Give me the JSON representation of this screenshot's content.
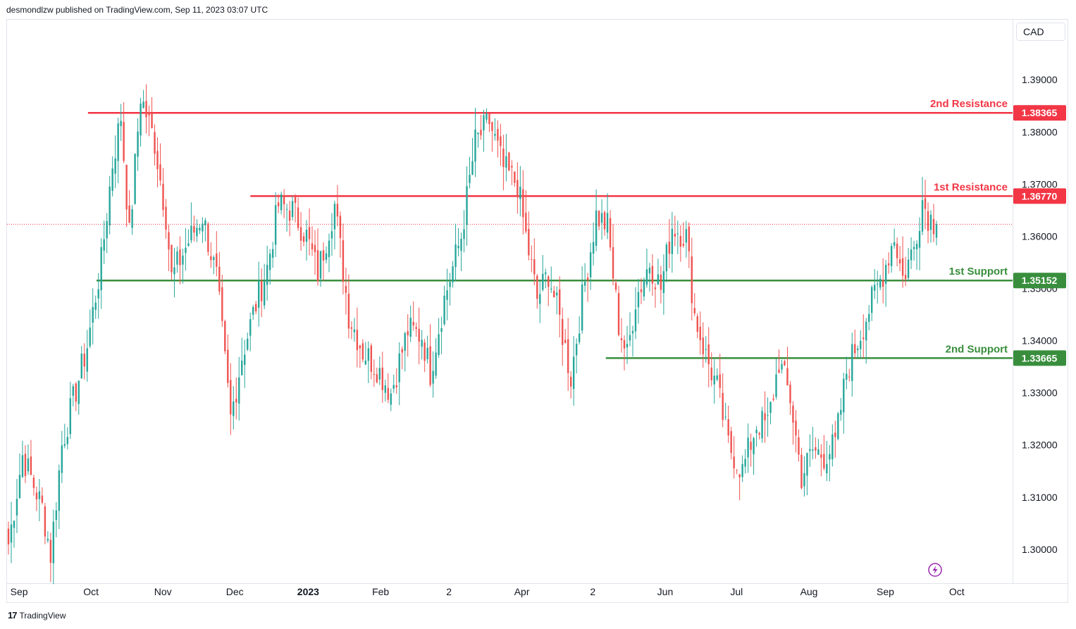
{
  "header": {
    "publish_text": "desmondlzw published on TradingView.com, Sep 11, 2023 03:07 UTC"
  },
  "currency_button": {
    "label": "CAD"
  },
  "footer": {
    "brand": "TradingView",
    "logo_glyph": "17"
  },
  "colors": {
    "up": "#26a69a",
    "down": "#ef5350",
    "resistance": "#f23645",
    "support": "#388e3c",
    "current_line": "#f23645",
    "flash_icon": "#9c27b0"
  },
  "chart_data": {
    "type": "candlestick",
    "title": "",
    "ylim": [
      1.2935,
      1.4015
    ],
    "y_ticks": [
      "1.30000",
      "1.31000",
      "1.32000",
      "1.33000",
      "1.34000",
      "1.35000",
      "1.36000",
      "1.37000",
      "1.38000",
      "1.39000"
    ],
    "x_ticks": [
      {
        "label": "Sep",
        "pos": 0.012,
        "bold": false
      },
      {
        "label": "Oct",
        "pos": 0.0835,
        "bold": false
      },
      {
        "label": "Nov",
        "pos": 0.155,
        "bold": false
      },
      {
        "label": "Dec",
        "pos": 0.2265,
        "bold": false
      },
      {
        "label": "2023",
        "pos": 0.2995,
        "bold": true
      },
      {
        "label": "Feb",
        "pos": 0.3715,
        "bold": false
      },
      {
        "label": "2",
        "pos": 0.4395,
        "bold": false
      },
      {
        "label": "Apr",
        "pos": 0.512,
        "bold": false
      },
      {
        "label": "2",
        "pos": 0.5825,
        "bold": false
      },
      {
        "label": "Jun",
        "pos": 0.6545,
        "bold": false
      },
      {
        "label": "Jul",
        "pos": 0.7255,
        "bold": false
      },
      {
        "label": "Aug",
        "pos": 0.7975,
        "bold": false
      },
      {
        "label": "Sep",
        "pos": 0.8735,
        "bold": false
      },
      {
        "label": "Oct",
        "pos": 0.9445,
        "bold": false
      }
    ],
    "levels": [
      {
        "name": "2nd Resistance",
        "value": 1.38365,
        "tag": "1.38365",
        "kind": "resistance",
        "x_start": 0.0805
      },
      {
        "name": "1st Resistance",
        "value": 1.3677,
        "tag": "1.36770",
        "kind": "resistance",
        "x_start": 0.242
      },
      {
        "name": "1st Support",
        "value": 1.35152,
        "tag": "1.35152",
        "kind": "support",
        "x_start": 0.089
      },
      {
        "name": "2nd Support",
        "value": 1.33665,
        "tag": "1.33665",
        "kind": "support",
        "x_start": 0.5955
      }
    ],
    "current_price": 1.3623,
    "anchors": [
      [
        0,
        1.301
      ],
      [
        5,
        1.318
      ],
      [
        12,
        1.308
      ],
      [
        15,
        1.299
      ],
      [
        19,
        1.32
      ],
      [
        28,
        1.339
      ],
      [
        33,
        1.355
      ],
      [
        37,
        1.374
      ],
      [
        40,
        1.383
      ],
      [
        43,
        1.36
      ],
      [
        47,
        1.387
      ],
      [
        52,
        1.378
      ],
      [
        56,
        1.364
      ],
      [
        58,
        1.352
      ],
      [
        64,
        1.359
      ],
      [
        69,
        1.364
      ],
      [
        74,
        1.352
      ],
      [
        79,
        1.325
      ],
      [
        83,
        1.337
      ],
      [
        88,
        1.347
      ],
      [
        92,
        1.354
      ],
      [
        96,
        1.366
      ],
      [
        101,
        1.365
      ],
      [
        106,
        1.36
      ],
      [
        110,
        1.353
      ],
      [
        116,
        1.366
      ],
      [
        121,
        1.345
      ],
      [
        126,
        1.338
      ],
      [
        131,
        1.335
      ],
      [
        136,
        1.33
      ],
      [
        142,
        1.342
      ],
      [
        147,
        1.341
      ],
      [
        150,
        1.334
      ],
      [
        155,
        1.348
      ],
      [
        161,
        1.36
      ],
      [
        166,
        1.378
      ],
      [
        171,
        1.382
      ],
      [
        176,
        1.373
      ],
      [
        181,
        1.37
      ],
      [
        184,
        1.36
      ],
      [
        188,
        1.348
      ],
      [
        192,
        1.353
      ],
      [
        196,
        1.344
      ],
      [
        200,
        1.333
      ],
      [
        204,
        1.348
      ],
      [
        209,
        1.364
      ],
      [
        213,
        1.362
      ],
      [
        217,
        1.343
      ],
      [
        220,
        1.337
      ],
      [
        223,
        1.348
      ],
      [
        228,
        1.355
      ],
      [
        232,
        1.35
      ],
      [
        236,
        1.362
      ],
      [
        241,
        1.36
      ],
      [
        244,
        1.345
      ],
      [
        248,
        1.337
      ],
      [
        252,
        1.331
      ],
      [
        256,
        1.32
      ],
      [
        261,
        1.315
      ],
      [
        266,
        1.324
      ],
      [
        270,
        1.324
      ],
      [
        274,
        1.336
      ],
      [
        278,
        1.329
      ],
      [
        282,
        1.314
      ],
      [
        286,
        1.319
      ],
      [
        290,
        1.318
      ],
      [
        294,
        1.32
      ],
      [
        298,
        1.334
      ],
      [
        302,
        1.34
      ],
      [
        306,
        1.346
      ],
      [
        311,
        1.353
      ],
      [
        315,
        1.36
      ],
      [
        318,
        1.352
      ],
      [
        322,
        1.358
      ],
      [
        325,
        1.367
      ],
      [
        327,
        1.364
      ],
      [
        330,
        1.3622
      ]
    ]
  }
}
